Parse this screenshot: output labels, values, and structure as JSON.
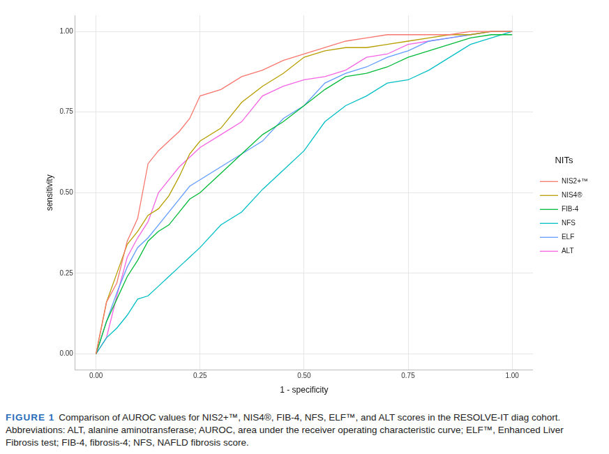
{
  "chart_data": {
    "type": "line",
    "x_label": "1 - specificity",
    "y_label": "sensitivity",
    "legend_title": "NITs",
    "legend": "right",
    "grid": true,
    "xlim": [
      -0.05,
      1.05
    ],
    "ylim": [
      -0.05,
      1.05
    ],
    "xticks": [
      {
        "value": 0,
        "label": "0.00"
      },
      {
        "value": 0.25,
        "label": "0.25"
      },
      {
        "value": 0.5,
        "label": "0.50"
      },
      {
        "value": 0.75,
        "label": "0.75"
      },
      {
        "value": 1,
        "label": "1.00"
      }
    ],
    "yticks": [
      {
        "value": 0,
        "label": "0.00"
      },
      {
        "value": 0.25,
        "label": "0.25"
      },
      {
        "value": 0.5,
        "label": "0.50"
      },
      {
        "value": 0.75,
        "label": "0.75"
      },
      {
        "value": 1,
        "label": "1.00"
      }
    ],
    "x": [
      0,
      0.025,
      0.05,
      0.075,
      0.1,
      0.125,
      0.15,
      0.175,
      0.2,
      0.225,
      0.25,
      0.3,
      0.35,
      0.4,
      0.45,
      0.5,
      0.55,
      0.6,
      0.65,
      0.7,
      0.75,
      0.8,
      0.85,
      0.9,
      0.95,
      1
    ],
    "series": [
      {
        "name": "NIS2+™",
        "color": "#F8766D",
        "values": [
          0,
          0.16,
          0.22,
          0.35,
          0.42,
          0.59,
          0.63,
          0.66,
          0.69,
          0.73,
          0.8,
          0.82,
          0.86,
          0.88,
          0.91,
          0.93,
          0.95,
          0.97,
          0.98,
          0.99,
          0.99,
          0.99,
          0.99,
          1.0,
          1.0,
          1.0
        ]
      },
      {
        "name": "NIS4®",
        "color": "#B79F00",
        "values": [
          0,
          0.16,
          0.25,
          0.34,
          0.38,
          0.43,
          0.45,
          0.49,
          0.55,
          0.62,
          0.66,
          0.7,
          0.78,
          0.83,
          0.87,
          0.92,
          0.94,
          0.95,
          0.95,
          0.96,
          0.97,
          0.98,
          0.99,
          0.99,
          1.0,
          1.0
        ]
      },
      {
        "name": "FIB-4",
        "color": "#00BA38",
        "values": [
          0,
          0.1,
          0.17,
          0.24,
          0.29,
          0.35,
          0.38,
          0.4,
          0.44,
          0.48,
          0.5,
          0.56,
          0.62,
          0.68,
          0.72,
          0.77,
          0.82,
          0.86,
          0.87,
          0.89,
          0.92,
          0.94,
          0.96,
          0.98,
          0.99,
          0.99
        ]
      },
      {
        "name": "NFS",
        "color": "#00BFC4",
        "values": [
          0,
          0.05,
          0.08,
          0.12,
          0.17,
          0.18,
          0.21,
          0.24,
          0.27,
          0.3,
          0.33,
          0.4,
          0.44,
          0.51,
          0.57,
          0.63,
          0.72,
          0.77,
          0.8,
          0.84,
          0.85,
          0.88,
          0.92,
          0.96,
          0.98,
          1.0
        ]
      },
      {
        "name": "ELF",
        "color": "#619CFF",
        "values": [
          0,
          0.1,
          0.19,
          0.27,
          0.33,
          0.36,
          0.4,
          0.44,
          0.48,
          0.52,
          0.54,
          0.58,
          0.62,
          0.66,
          0.73,
          0.77,
          0.84,
          0.87,
          0.89,
          0.92,
          0.94,
          0.97,
          0.98,
          0.99,
          1.0,
          1.0
        ]
      },
      {
        "name": "ALT",
        "color": "#F564E3",
        "values": [
          0,
          0.05,
          0.18,
          0.3,
          0.36,
          0.41,
          0.5,
          0.54,
          0.58,
          0.61,
          0.64,
          0.68,
          0.72,
          0.8,
          0.83,
          0.85,
          0.86,
          0.88,
          0.92,
          0.93,
          0.96,
          0.97,
          0.98,
          0.99,
          1.0,
          1.0
        ]
      }
    ]
  },
  "caption": {
    "label": "FIGURE 1",
    "text": "Comparison of AUROC values for NIS2+™, NIS4®, FIB-4, NFS, ELF™, and ALT scores in the RESOLVE-IT diag cohort.",
    "abbreviations": "Abbreviations: ALT, alanine aminotransferase; AUROC, area under the receiver operating characteristic curve; ELF™, Enhanced Liver Fibrosis test; FIB-4, fibrosis-4; NFS, NAFLD fibrosis score."
  }
}
